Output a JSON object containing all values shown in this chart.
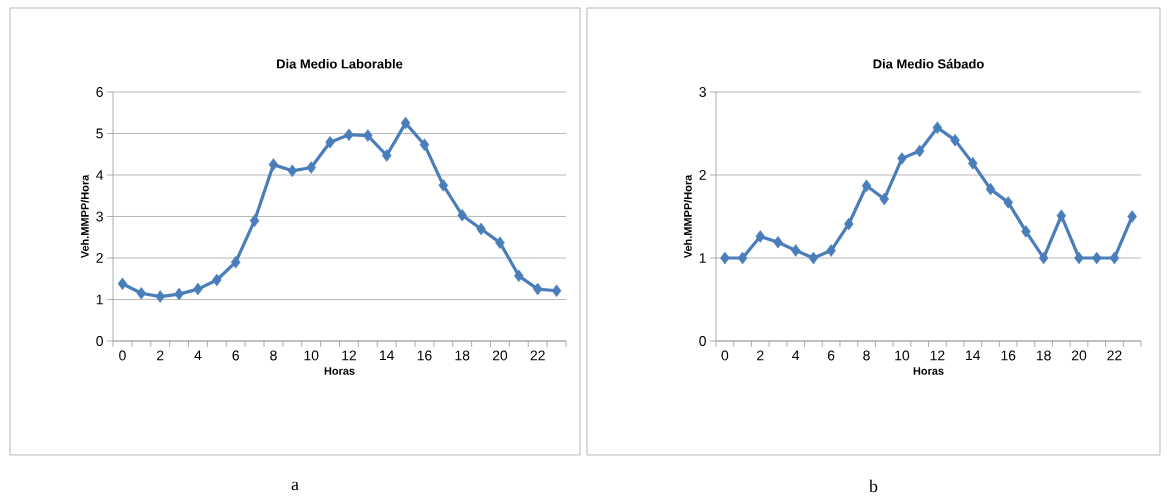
{
  "chart_data": [
    {
      "type": "line",
      "title": "Dia Medio Laborable",
      "xlabel": "Horas",
      "ylabel": "Veh.MMPP/Hora",
      "categories": [
        "0",
        null,
        "2",
        null,
        "4",
        null,
        "6",
        null,
        "8",
        null,
        "10",
        null,
        "12",
        null,
        "14",
        null,
        "16",
        null,
        "18",
        null,
        "20",
        null,
        "22",
        null
      ],
      "series": [
        {
          "color": "#4a7ebb",
          "values": [
            1.38,
            1.15,
            1.07,
            1.13,
            1.25,
            1.47,
            1.9,
            2.9,
            4.25,
            4.1,
            4.18,
            4.79,
            4.97,
            4.95,
            4.47,
            5.25,
            4.73,
            3.75,
            3.03,
            2.7,
            2.37,
            1.57,
            1.25,
            1.21
          ]
        }
      ],
      "ylim": [
        0,
        6
      ],
      "yticks": [
        0,
        1,
        2,
        3,
        4,
        5,
        6
      ],
      "grid": "y",
      "marker": "diamond",
      "annotations": [
        "a"
      ]
    },
    {
      "type": "line",
      "title": "Dia Medio Sábado",
      "xlabel": "Horas",
      "ylabel": "Veh.MMPP/Hora",
      "categories": [
        "0",
        null,
        "2",
        null,
        "4",
        null,
        "6",
        null,
        "8",
        null,
        "10",
        null,
        "12",
        null,
        "14",
        null,
        "16",
        null,
        "18",
        null,
        "20",
        null,
        "22",
        null
      ],
      "series": [
        {
          "color": "#4a7ebb",
          "values": [
            1,
            1,
            1.26,
            1.19,
            1.09,
            1,
            1.09,
            1.41,
            1.87,
            1.71,
            2.2,
            2.29,
            2.57,
            2.42,
            2.14,
            1.83,
            1.67,
            1.32,
            1,
            1.51,
            1,
            1,
            1,
            1.5
          ]
        }
      ],
      "ylim": [
        0,
        3
      ],
      "yticks": [
        0,
        1,
        2,
        3
      ],
      "grid": "y",
      "marker": "diamond",
      "annotations": [
        "b"
      ]
    }
  ]
}
